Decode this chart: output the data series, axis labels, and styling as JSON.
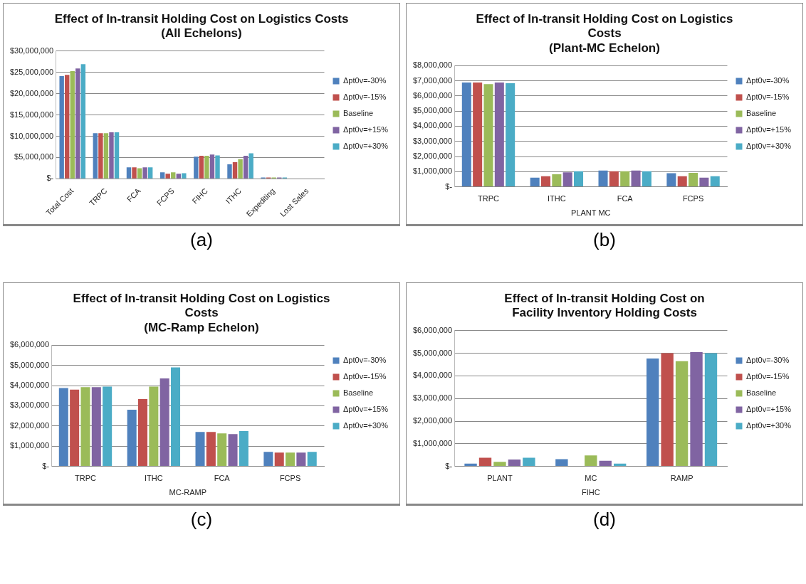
{
  "chart_data": [
    {
      "type": "bar",
      "title": "Effect of In-transit Holding Cost on Logistics Costs\n(All Echelons)",
      "categories": [
        "Total Cost",
        "TRPC",
        "FCA",
        "FCPS",
        "FIHC",
        "ITHC",
        "Expediting",
        "Lost Sales"
      ],
      "series": [
        {
          "name": "Δpt0v=-30%",
          "color": "#4f81bd",
          "values": [
            24100000,
            10700000,
            2700000,
            1500000,
            5200000,
            3400000,
            300000,
            0
          ]
        },
        {
          "name": "Δpt0v=-15%",
          "color": "#c0504d",
          "values": [
            24400000,
            10700000,
            2700000,
            1200000,
            5400000,
            3900000,
            300000,
            0
          ]
        },
        {
          "name": "Baseline",
          "color": "#9bbb59",
          "values": [
            25300000,
            10700000,
            2500000,
            1500000,
            5400000,
            4600000,
            300000,
            0
          ]
        },
        {
          "name": "Δpt0v=+15%",
          "color": "#8064a2",
          "values": [
            25900000,
            10900000,
            2700000,
            1200000,
            5700000,
            5400000,
            300000,
            0
          ]
        },
        {
          "name": "Δpt0v=+30%",
          "color": "#4bacc6",
          "values": [
            26900000,
            10900000,
            2700000,
            1300000,
            5500000,
            6000000,
            300000,
            0
          ]
        }
      ],
      "ylim": [
        0,
        30000000
      ],
      "yticks": [
        {
          "value": 0,
          "label": "$-"
        },
        {
          "value": 5000000,
          "label": "$5,000,000"
        },
        {
          "value": 10000000,
          "label": "$10,000,000"
        },
        {
          "value": 15000000,
          "label": "$15,000,000"
        },
        {
          "value": 20000000,
          "label": "$20,000,000"
        },
        {
          "value": 25000000,
          "label": "$25,000,000"
        },
        {
          "value": 30000000,
          "label": "$30,000,000"
        }
      ],
      "grid": "y",
      "legend": "right",
      "annotations": [
        "(a)"
      ]
    },
    {
      "type": "bar",
      "title": "Effect of In-transit Holding Cost on Logistics\nCosts\n(Plant-MC Echelon)",
      "categories": [
        "TRPC",
        "ITHC",
        "FCA",
        "FCPS"
      ],
      "xlabel": "PLANT MC",
      "series": [
        {
          "name": "Δpt0v=-30%",
          "color": "#4f81bd",
          "values": [
            6880000,
            600000,
            1070000,
            900000
          ]
        },
        {
          "name": "Δpt0v=-15%",
          "color": "#c0504d",
          "values": [
            6880000,
            700000,
            1030000,
            700000
          ]
        },
        {
          "name": "Baseline",
          "color": "#9bbb59",
          "values": [
            6780000,
            830000,
            1030000,
            920000
          ]
        },
        {
          "name": "Δpt0v=+15%",
          "color": "#8064a2",
          "values": [
            6880000,
            950000,
            1070000,
            600000
          ]
        },
        {
          "name": "Δpt0v=+30%",
          "color": "#4bacc6",
          "values": [
            6830000,
            1020000,
            1030000,
            700000
          ]
        }
      ],
      "ylim": [
        0,
        8000000
      ],
      "yticks": [
        {
          "value": 0,
          "label": "$-"
        },
        {
          "value": 1000000,
          "label": "$1,000,000"
        },
        {
          "value": 2000000,
          "label": "$2,000,000"
        },
        {
          "value": 3000000,
          "label": "$3,000,000"
        },
        {
          "value": 4000000,
          "label": "$4,000,000"
        },
        {
          "value": 5000000,
          "label": "$5,000,000"
        },
        {
          "value": 6000000,
          "label": "$6,000,000"
        },
        {
          "value": 7000000,
          "label": "$7,000,000"
        },
        {
          "value": 8000000,
          "label": "$8,000,000"
        }
      ],
      "grid": "y",
      "legend": "right",
      "annotations": [
        "(b)"
      ]
    },
    {
      "type": "bar",
      "title": "Effect of In-transit Holding Cost on Logistics\nCosts\n(MC-Ramp Echelon)",
      "categories": [
        "TRPC",
        "ITHC",
        "FCA",
        "FCPS"
      ],
      "xlabel": "MC-RAMP",
      "series": [
        {
          "name": "Δpt0v=-30%",
          "color": "#4f81bd",
          "values": [
            3880000,
            2800000,
            1700000,
            720000
          ]
        },
        {
          "name": "Δpt0v=-15%",
          "color": "#c0504d",
          "values": [
            3800000,
            3330000,
            1700000,
            680000
          ]
        },
        {
          "name": "Baseline",
          "color": "#9bbb59",
          "values": [
            3920000,
            3950000,
            1630000,
            680000
          ]
        },
        {
          "name": "Δpt0v=+15%",
          "color": "#8064a2",
          "values": [
            3920000,
            4350000,
            1600000,
            680000
          ]
        },
        {
          "name": "Δpt0v=+30%",
          "color": "#4bacc6",
          "values": [
            3950000,
            4900000,
            1750000,
            720000
          ]
        }
      ],
      "ylim": [
        0,
        6000000
      ],
      "yticks": [
        {
          "value": 0,
          "label": "$-"
        },
        {
          "value": 1000000,
          "label": "$1,000,000"
        },
        {
          "value": 2000000,
          "label": "$2,000,000"
        },
        {
          "value": 3000000,
          "label": "$3,000,000"
        },
        {
          "value": 4000000,
          "label": "$4,000,000"
        },
        {
          "value": 5000000,
          "label": "$5,000,000"
        },
        {
          "value": 6000000,
          "label": "$6,000,000"
        }
      ],
      "grid": "y",
      "legend": "right",
      "annotations": [
        "(c)"
      ]
    },
    {
      "type": "bar",
      "title": "Effect of In-transit Holding Cost on\nFacility Inventory Holding Costs",
      "categories": [
        "PLANT",
        "MC",
        "RAMP"
      ],
      "xlabel": "FIHC",
      "series": [
        {
          "name": "Δpt0v=-30%",
          "color": "#4f81bd",
          "values": [
            120000,
            320000,
            4770000
          ]
        },
        {
          "name": "Δpt0v=-15%",
          "color": "#c0504d",
          "values": [
            380000,
            0,
            5000000
          ]
        },
        {
          "name": "Baseline",
          "color": "#9bbb59",
          "values": [
            200000,
            480000,
            4650000
          ]
        },
        {
          "name": "Δpt0v=+15%",
          "color": "#8064a2",
          "values": [
            300000,
            250000,
            5050000
          ]
        },
        {
          "name": "Δpt0v=+30%",
          "color": "#4bacc6",
          "values": [
            380000,
            120000,
            5000000
          ]
        }
      ],
      "ylim": [
        0,
        6000000
      ],
      "yticks": [
        {
          "value": 0,
          "label": "$-"
        },
        {
          "value": 1000000,
          "label": "$1,000,000"
        },
        {
          "value": 2000000,
          "label": "$2,000,000"
        },
        {
          "value": 3000000,
          "label": "$3,000,000"
        },
        {
          "value": 4000000,
          "label": "$4,000,000"
        },
        {
          "value": 5000000,
          "label": "$5,000,000"
        },
        {
          "value": 6000000,
          "label": "$6,000,000"
        }
      ],
      "grid": "y",
      "legend": "right",
      "annotations": [
        "(d)"
      ]
    }
  ]
}
